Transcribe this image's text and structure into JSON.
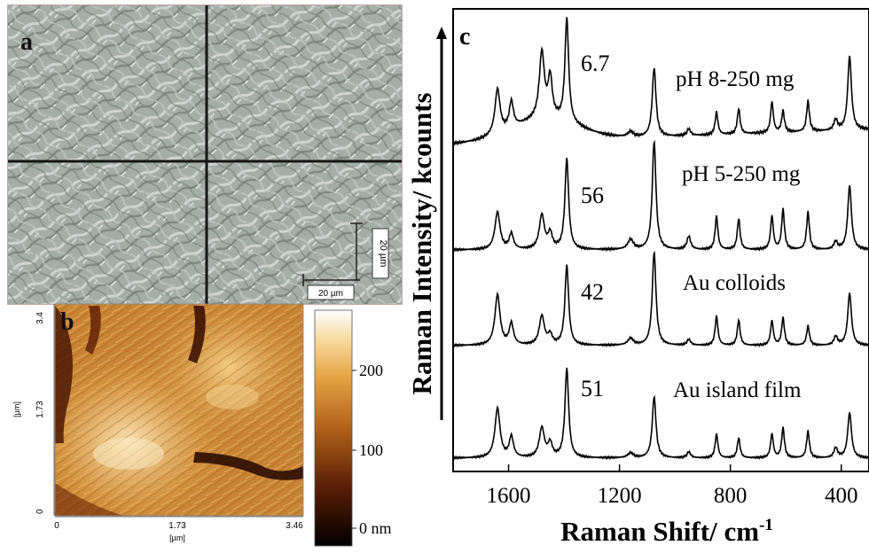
{
  "panel_a": {
    "label": "a",
    "scale_bar_horizontal": "20 µm",
    "scale_bar_vertical": "20 µm"
  },
  "panel_b": {
    "label": "b",
    "y_axis_unit": "[µm]",
    "x_axis_unit": "[µm]",
    "y_ticks": [
      "3.4",
      "1.73",
      "0"
    ],
    "x_ticks": [
      "0",
      "1.73",
      "3.46"
    ],
    "colorbar_ticks": [
      "200",
      "100",
      "0 nm"
    ]
  },
  "chart_data": {
    "type": "line",
    "panel_label": "c",
    "xlabel": "Raman Shift/ cm-1",
    "xlabel_main": "Raman Shift/ cm",
    "xlabel_sup": "-1",
    "ylabel": "Raman Intensity/ kcounts",
    "x_axis_reversed": true,
    "xlim": [
      1800,
      300
    ],
    "x_ticks": [
      1600,
      1200,
      800,
      400
    ],
    "peaks_cm-1": [
      1640,
      1590,
      1480,
      1450,
      1390,
      1160,
      1075,
      950,
      850,
      770,
      650,
      610,
      520,
      420,
      370
    ],
    "series": [
      {
        "name": "pH 8-250 mg",
        "scale": "6.7",
        "peak_intensities": [
          0.34,
          0.2,
          0.5,
          0.3,
          0.78,
          0.04,
          0.52,
          0.05,
          0.17,
          0.19,
          0.23,
          0.16,
          0.23,
          0.08,
          0.56
        ]
      },
      {
        "name": "pH 5-250 mg",
        "scale": "56",
        "peak_intensities": [
          0.34,
          0.14,
          0.31,
          0.14,
          0.82,
          0.09,
          0.98,
          0.12,
          0.3,
          0.28,
          0.3,
          0.36,
          0.34,
          0.07,
          0.58
        ]
      },
      {
        "name": "Au colloids",
        "scale": "42",
        "peak_intensities": [
          0.52,
          0.22,
          0.3,
          0.1,
          0.82,
          0.07,
          0.96,
          0.06,
          0.3,
          0.26,
          0.25,
          0.28,
          0.2,
          0.09,
          0.54
        ]
      },
      {
        "name": "Au island film",
        "scale": "51",
        "peak_intensities": [
          0.5,
          0.21,
          0.3,
          0.14,
          0.9,
          0.05,
          0.62,
          0.06,
          0.24,
          0.2,
          0.24,
          0.3,
          0.27,
          0.1,
          0.46
        ]
      }
    ]
  }
}
